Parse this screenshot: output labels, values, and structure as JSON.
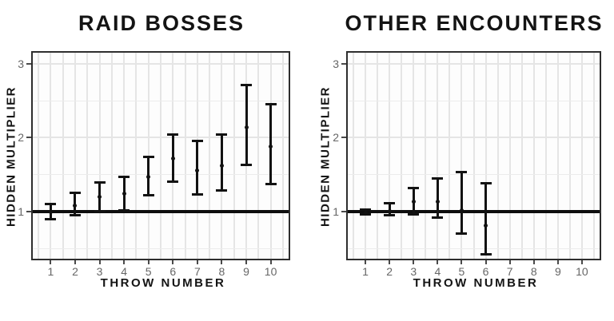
{
  "colors": {
    "background": "#ffffff",
    "panel_background": "#fdfdfd",
    "panel_border": "#2e2e2e",
    "grid": "#e5e5e5",
    "text_black": "#141414",
    "tick_label_gray": "#666666",
    "data_black": "#121212",
    "baseline_black": "#0e0e0e"
  },
  "chart_data": [
    {
      "type": "errorbar",
      "title": "RAID BOSSES",
      "xlabel": "THROW NUMBER",
      "ylabel": "HIDDEN MULTIPLIER",
      "categories": [
        1,
        2,
        3,
        4,
        5,
        6,
        7,
        8,
        9,
        10
      ],
      "estimates": [
        0.99,
        1.08,
        1.2,
        1.24,
        1.47,
        1.72,
        1.55,
        1.62,
        2.14,
        1.88
      ],
      "lower": [
        0.89,
        0.94,
        1.0,
        1.01,
        1.21,
        1.4,
        1.22,
        1.28,
        1.63,
        1.37
      ],
      "upper": [
        1.11,
        1.26,
        1.4,
        1.47,
        1.74,
        2.05,
        1.96,
        2.05,
        2.72,
        2.46
      ],
      "baseline": 1,
      "yticks": [
        1,
        2,
        3
      ],
      "yticks_minor": [
        0.5,
        1.5,
        2.5
      ],
      "ylim": [
        0.36,
        3.15
      ],
      "grid": "on",
      "legend": "none"
    },
    {
      "type": "errorbar",
      "title": "OTHER ENCOUNTERS",
      "xlabel": "THROW NUMBER",
      "ylabel": "HIDDEN MULTIPLIER",
      "categories": [
        1,
        2,
        3,
        4,
        5,
        6,
        7,
        8,
        9,
        10
      ],
      "estimates": [
        0.98,
        1.0,
        1.13,
        1.13,
        1.01,
        0.81,
        null,
        null,
        null,
        null
      ],
      "lower": [
        0.95,
        0.94,
        0.95,
        0.91,
        0.69,
        0.41,
        null,
        null,
        null,
        null
      ],
      "upper": [
        1.03,
        1.12,
        1.32,
        1.45,
        1.54,
        1.39,
        null,
        null,
        null,
        null
      ],
      "baseline": 1,
      "yticks": [
        1,
        2,
        3
      ],
      "yticks_minor": [
        0.5,
        1.5,
        2.5
      ],
      "ylim": [
        0.36,
        3.15
      ],
      "grid": "on",
      "legend": "none"
    }
  ]
}
